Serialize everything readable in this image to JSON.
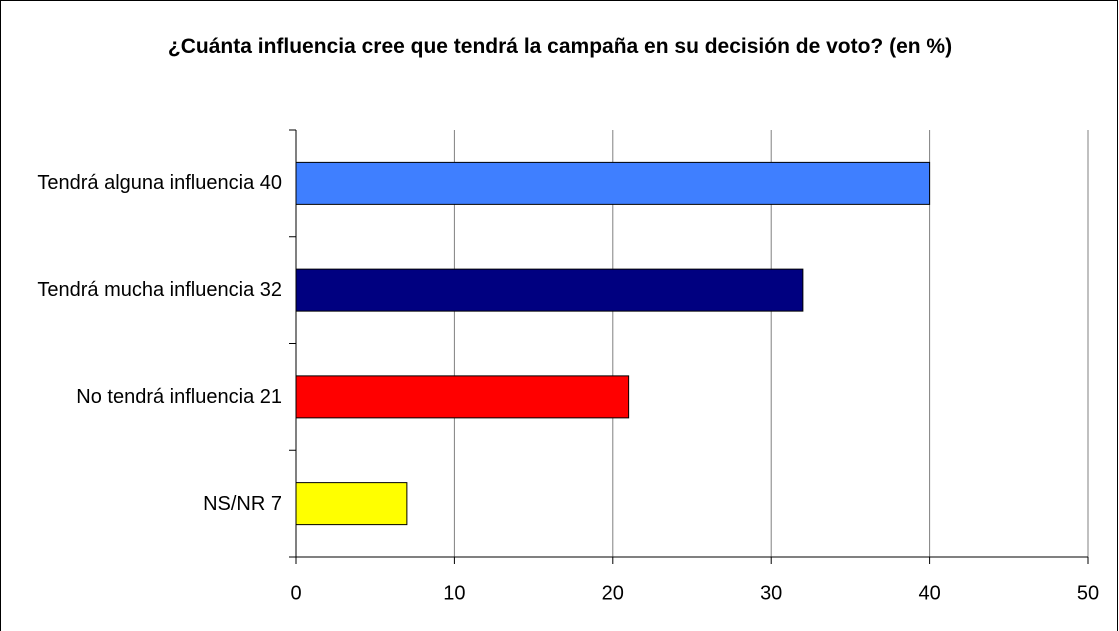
{
  "chart_data": {
    "type": "bar",
    "orientation": "horizontal",
    "title": "¿Cuánta influencia cree que tendrá la campaña en su decisión de voto? (en %)",
    "categories": [
      "Tendrá alguna influencia 40",
      "Tendrá mucha influencia 32",
      "No tendrá influencia 21",
      "NS/NR 7"
    ],
    "values": [
      40,
      32,
      21,
      7
    ],
    "colors": [
      "#3f7fff",
      "#000080",
      "#ff0000",
      "#ffff00"
    ],
    "xlim": [
      0,
      50
    ],
    "xticks": [
      0,
      10,
      20,
      30,
      40,
      50
    ],
    "grid": true
  }
}
